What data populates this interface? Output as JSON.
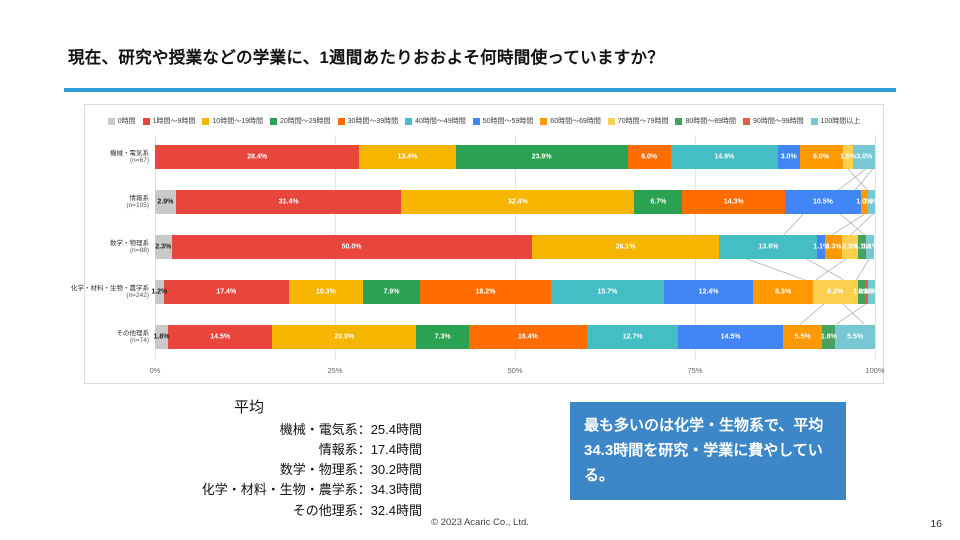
{
  "slide": {
    "title": "現在、研究や授業などの学業に、1週間あたりおおよそ何時間使っていますか？",
    "footer": "© 2023 Acaric Co., Ltd.",
    "page_number": "16",
    "callout": "最も多いのは化学・生物系で、平均34.3時間を研究・学業に費やしている。",
    "colors": {
      "accent": "#2f9cd6",
      "callout_bg": "#3d87c9"
    },
    "averages": {
      "title": "平均",
      "lines": [
        "機械・電気系：25.4時間",
        "情報系：17.4時間",
        "数学・物理系：30.2時間",
        "化学・材料・生物・農学系：34.3時間",
        "その他理系：32.4時間"
      ]
    }
  },
  "chart_data": {
    "type": "bar",
    "stacked": true,
    "orientation": "horizontal",
    "unit": "%",
    "x_ticks": [
      "0%",
      "25%",
      "50%",
      "75%",
      "100%"
    ],
    "xlim": [
      0,
      100
    ],
    "legend": [
      {
        "label": "0時間",
        "color": "#c9c9c9"
      },
      {
        "label": "1時間～9時間",
        "color": "#e8453c"
      },
      {
        "label": "10時間～19時間",
        "color": "#f5b500"
      },
      {
        "label": "20時間～29時間",
        "color": "#2aa251"
      },
      {
        "label": "30時間～39時間",
        "color": "#ff6d01"
      },
      {
        "label": "40時間～49時間",
        "color": "#45bdc5"
      },
      {
        "label": "50時間～59時間",
        "color": "#4285f4"
      },
      {
        "label": "60時間～69時間",
        "color": "#ff9900"
      },
      {
        "label": "70時間～79時間",
        "color": "#fcd04f"
      },
      {
        "label": "80時間～89時間",
        "color": "#45a35f"
      },
      {
        "label": "90時間～99時間",
        "color": "#e05a4e"
      },
      {
        "label": "100時間以上",
        "color": "#77c8d2"
      }
    ],
    "rows": [
      {
        "label": "機械・電気系",
        "n": "(n=67)",
        "values": [
          0,
          28.4,
          13.4,
          23.9,
          6.0,
          14.9,
          3.0,
          6.0,
          1.5,
          0,
          0,
          3.0
        ]
      },
      {
        "label": "情報系",
        "n": "(n=105)",
        "values": [
          2.9,
          31.4,
          32.4,
          6.7,
          14.3,
          0,
          10.5,
          1.0,
          0,
          0,
          0,
          1.0
        ]
      },
      {
        "label": "数学・物理系",
        "n": "(n=88)",
        "values": [
          2.3,
          50.0,
          26.1,
          0,
          0,
          13.6,
          1.1,
          2.3,
          2.3,
          1.1,
          0,
          1.1
        ]
      },
      {
        "label": "化学・材料・生物・農学系",
        "n": "(n=242)",
        "values": [
          1.2,
          17.4,
          10.3,
          7.9,
          18.2,
          15.7,
          12.4,
          8.3,
          6.2,
          1.0,
          0.4,
          1.0
        ]
      },
      {
        "label": "その他理系",
        "n": "(n=74)",
        "values": [
          1.8,
          14.5,
          20.0,
          7.3,
          16.4,
          12.7,
          14.5,
          5.5,
          0,
          1.8,
          0,
          5.5
        ]
      }
    ]
  }
}
